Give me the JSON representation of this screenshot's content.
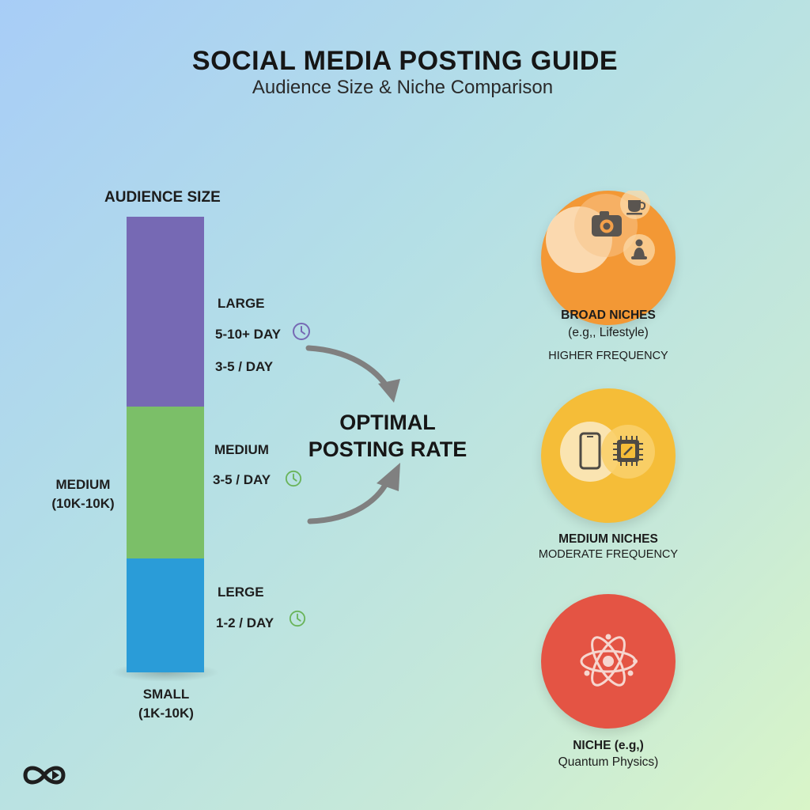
{
  "header": {
    "title": "SOCIAL MEDIA POSTING GUIDE",
    "subtitle": "Audience Size & Niche Comparison"
  },
  "audience": {
    "axis_title": "AUDIENCE SIZE",
    "side_medium_line1": "MEDIUM",
    "side_medium_line2": "(10K-10K)",
    "side_small_line1": "SMALL",
    "side_small_line2": "(1K-10K)",
    "colors": {
      "large": "#7669b4",
      "medium": "#7bbf68",
      "small": "#2a9cd8"
    }
  },
  "rates": {
    "large_label": "LARGE",
    "large_rate": "5-10+ DAY",
    "large_rate_alt": "3-5 / DAY",
    "medium_label": "MEDIUM",
    "medium_rate": "3-5 / DAY",
    "small_label": "LERGE",
    "small_rate": "1-2 / DAY"
  },
  "center": {
    "line1": "OPTIMAL",
    "line2": "POSTING RATE"
  },
  "niches": {
    "broad": {
      "title": "BROAD NICHES",
      "example": "(e.g,, Lifestyle)",
      "frequency": "HIGHER FREQUENCY",
      "color": "#f39835",
      "icons": [
        "camera-icon",
        "coffee-cup-icon",
        "meditation-person-icon"
      ]
    },
    "medium": {
      "title": "MEDIUM NICHES",
      "frequency": "MODERATE FREQUENCY",
      "color": "#f5bd38",
      "icons": [
        "smartphone-icon",
        "microchip-icon"
      ]
    },
    "niche": {
      "title": "NICHE (e.g,)",
      "example": "Quantum Physics)",
      "color": "#e45444",
      "icons": [
        "atom-icon"
      ]
    }
  },
  "logo": {
    "icon": "infinity-play-logo-icon"
  }
}
